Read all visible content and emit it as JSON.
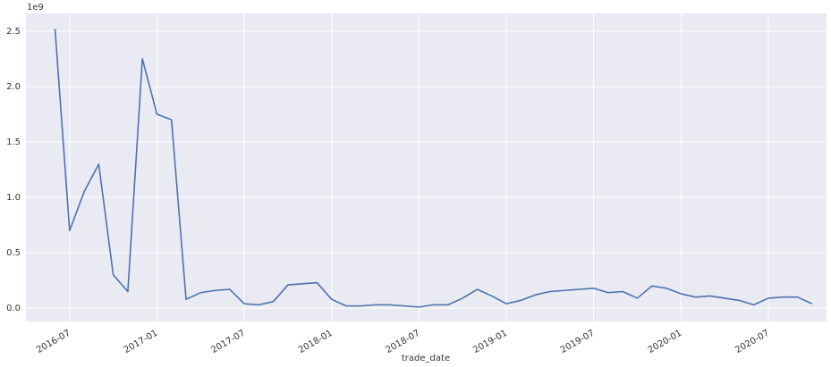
{
  "chart_data": {
    "type": "line",
    "offset_label": "1e9",
    "xlabel": "trade_date",
    "x": [
      "2016-06",
      "2016-07",
      "2016-08",
      "2016-09",
      "2016-10",
      "2016-11",
      "2016-12",
      "2017-01",
      "2017-02",
      "2017-03",
      "2017-04",
      "2017-05",
      "2017-06",
      "2017-07",
      "2017-08",
      "2017-09",
      "2017-10",
      "2017-11",
      "2017-12",
      "2018-01",
      "2018-02",
      "2018-03",
      "2018-04",
      "2018-05",
      "2018-06",
      "2018-07",
      "2018-08",
      "2018-09",
      "2018-10",
      "2018-11",
      "2018-12",
      "2019-01",
      "2019-02",
      "2019-03",
      "2019-04",
      "2019-05",
      "2019-06",
      "2019-07",
      "2019-08",
      "2019-09",
      "2019-10",
      "2019-11",
      "2019-12",
      "2020-01",
      "2020-02",
      "2020-03",
      "2020-04",
      "2020-05",
      "2020-06",
      "2020-07",
      "2020-08",
      "2020-09",
      "2020-10"
    ],
    "series": [
      {
        "color": "#4c72b0",
        "values": [
          2.52,
          0.7,
          1.05,
          1.3,
          0.3,
          0.15,
          2.25,
          1.75,
          1.7,
          0.08,
          0.14,
          0.16,
          0.17,
          0.04,
          0.03,
          0.06,
          0.21,
          0.22,
          0.23,
          0.08,
          0.02,
          0.02,
          0.03,
          0.03,
          0.02,
          0.01,
          0.03,
          0.03,
          0.09,
          0.17,
          0.11,
          0.04,
          0.07,
          0.12,
          0.15,
          0.16,
          0.17,
          0.18,
          0.14,
          0.15,
          0.09,
          0.2,
          0.18,
          0.13,
          0.1,
          0.11,
          0.09,
          0.07,
          0.03,
          0.09,
          0.1,
          0.1,
          0.04
        ]
      }
    ],
    "xlim": [
      "2016-04",
      "2020-11"
    ],
    "xticks": [
      "2016-07",
      "2017-01",
      "2017-07",
      "2018-01",
      "2018-07",
      "2019-01",
      "2019-07",
      "2020-01",
      "2020-07"
    ],
    "ylim": [
      -0.12,
      2.66
    ],
    "yticks": [
      {
        "value": 0,
        "label": "0.0"
      },
      0.5,
      {
        "value": 1,
        "label": "1.0"
      },
      1.5,
      {
        "value": 2,
        "label": "2.0"
      },
      2.5
    ],
    "grid": true
  }
}
